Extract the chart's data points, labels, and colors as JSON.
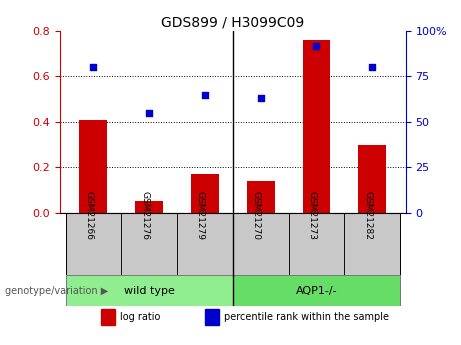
{
  "title": "GDS899 / H3099C09",
  "samples": [
    "GSM21266",
    "GSM21276",
    "GSM21279",
    "GSM21270",
    "GSM21273",
    "GSM21282"
  ],
  "log_ratio": [
    0.41,
    0.05,
    0.17,
    0.14,
    0.76,
    0.3
  ],
  "percentile_rank": [
    80,
    55,
    65,
    63,
    92,
    80
  ],
  "left_ylim": [
    0,
    0.8
  ],
  "right_ylim": [
    0,
    100
  ],
  "left_yticks": [
    0,
    0.2,
    0.4,
    0.6,
    0.8
  ],
  "right_yticks": [
    0,
    25,
    50,
    75,
    100
  ],
  "right_yticklabels": [
    "0",
    "25",
    "50",
    "75",
    "100%"
  ],
  "bar_color": "#CC0000",
  "dot_color": "#0000CC",
  "group_bg_color": "#C8C8C8",
  "wt_color": "#90EE90",
  "aqp_color": "#66DD66",
  "legend_bar_label": "log ratio",
  "legend_dot_label": "percentile rank within the sample",
  "genotype_label": "genotype/variation",
  "bar_width": 0.5,
  "wt_label": "wild type",
  "aqp_label": "AQP1-/-"
}
